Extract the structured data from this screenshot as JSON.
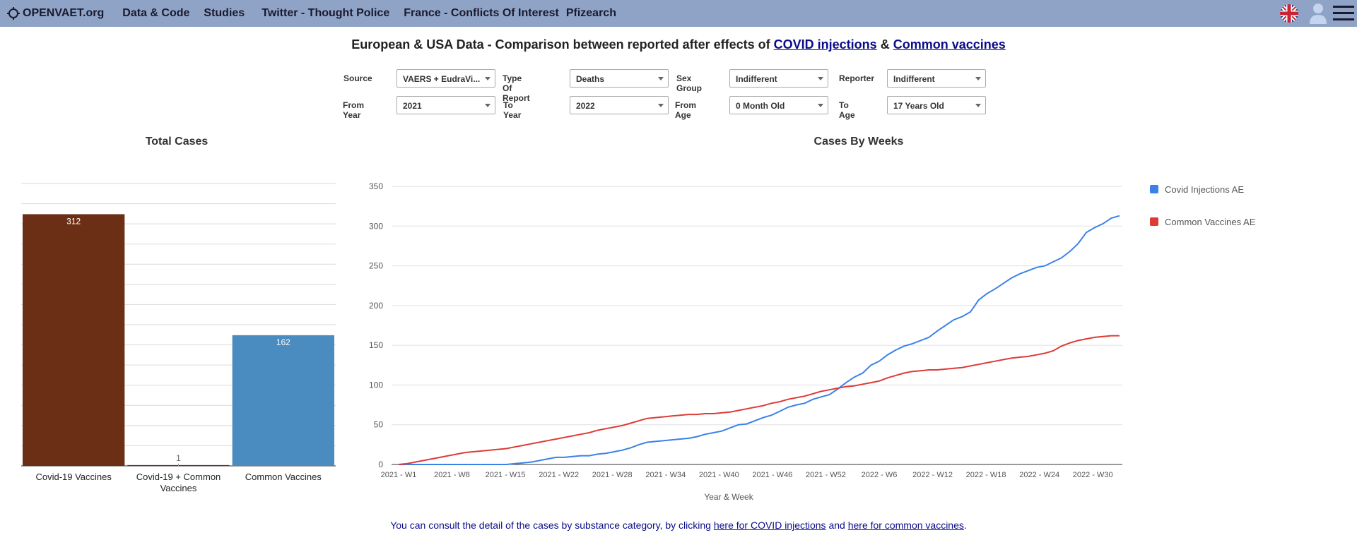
{
  "nav": {
    "brand": "OPENVAET.org",
    "items": [
      "Data & Code",
      "Studies",
      "Twitter - Thought Police",
      "France - Conflicts Of Interest",
      "Pfizearch"
    ]
  },
  "title": {
    "prefix": "European & USA Data - Comparison between reported after effects of ",
    "link1": "COVID injections",
    "middle": " & ",
    "link2": "Common vaccines"
  },
  "filters": [
    {
      "label": "Source",
      "value": "VAERS + EudraVi..."
    },
    {
      "label": "Type Of Report",
      "value": "Deaths"
    },
    {
      "label": "Sex Group",
      "value": "Indifferent"
    },
    {
      "label": "Reporter",
      "value": "Indifferent"
    },
    {
      "label": "From Year",
      "value": "2021"
    },
    {
      "label": "To Year",
      "value": "2022"
    },
    {
      "label": "From Age",
      "value": "0 Month Old"
    },
    {
      "label": "To Age",
      "value": "17 Years Old"
    }
  ],
  "footer": {
    "prefix": "You can consult the detail of the cases by substance category, by clicking ",
    "link1": "here for COVID injections",
    "middle": " and ",
    "link2": "here for common vaccines",
    "suffix": "."
  },
  "colors": {
    "navbar": "#8fa3c6",
    "covid_bar": "#6b2f16",
    "common_bar": "#4a8bc0",
    "covid_line": "#3b82e8",
    "common_line": "#dd3b36"
  },
  "chart_data": [
    {
      "type": "bar",
      "title": "Total Cases",
      "categories": [
        "Covid-19 Vaccines",
        "Covid-19 + Common Vaccines",
        "Common Vaccines"
      ],
      "values": [
        312,
        1,
        162
      ],
      "ylim": [
        0,
        350
      ],
      "grid": true
    },
    {
      "type": "line",
      "title": "Cases By Weeks",
      "xlabel": "Year & Week",
      "ylabel": "",
      "ylim": [
        0,
        350
      ],
      "yticks": [
        0,
        50,
        100,
        150,
        200,
        250,
        300,
        350
      ],
      "xticks": [
        "2021 - W1",
        "2021 - W8",
        "2021 - W15",
        "2021 - W22",
        "2021 - W28",
        "2021 - W34",
        "2021 - W40",
        "2021 - W46",
        "2021 - W52",
        "2022 - W6",
        "2022 - W12",
        "2022 - W18",
        "2022 - W24",
        "2022 - W30"
      ],
      "legend_position": "right",
      "grid": true,
      "series": [
        {
          "name": "Covid Injections AE",
          "values": [
            0,
            0,
            0,
            0,
            0,
            0,
            0,
            0,
            0,
            0,
            0,
            0,
            0,
            0,
            1,
            2,
            3,
            5,
            7,
            9,
            9,
            10,
            11,
            11,
            13,
            14,
            16,
            18,
            21,
            25,
            28,
            29,
            30,
            31,
            32,
            33,
            35,
            38,
            40,
            42,
            46,
            50,
            51,
            55,
            59,
            62,
            67,
            72,
            75,
            77,
            82,
            85,
            88,
            95,
            103,
            110,
            115,
            125,
            130,
            138,
            144,
            149,
            152,
            156,
            160,
            168,
            175,
            182,
            186,
            192,
            207,
            215,
            221,
            228,
            235,
            240,
            244,
            248,
            250,
            255,
            260,
            268,
            278,
            292,
            298,
            303,
            310,
            313
          ]
        },
        {
          "name": "Common Vaccines AE",
          "values": [
            0,
            1,
            3,
            5,
            7,
            9,
            11,
            13,
            15,
            16,
            17,
            18,
            19,
            20,
            22,
            24,
            26,
            28,
            30,
            32,
            34,
            36,
            38,
            40,
            43,
            45,
            47,
            49,
            52,
            55,
            58,
            59,
            60,
            61,
            62,
            63,
            63,
            64,
            64,
            65,
            66,
            68,
            70,
            72,
            74,
            77,
            79,
            82,
            84,
            86,
            89,
            92,
            94,
            96,
            98,
            99,
            101,
            103,
            105,
            109,
            112,
            115,
            117,
            118,
            119,
            119,
            120,
            121,
            122,
            124,
            126,
            128,
            130,
            132,
            134,
            135,
            136,
            138,
            140,
            143,
            149,
            153,
            156,
            158,
            160,
            161,
            162,
            162
          ]
        }
      ]
    }
  ]
}
